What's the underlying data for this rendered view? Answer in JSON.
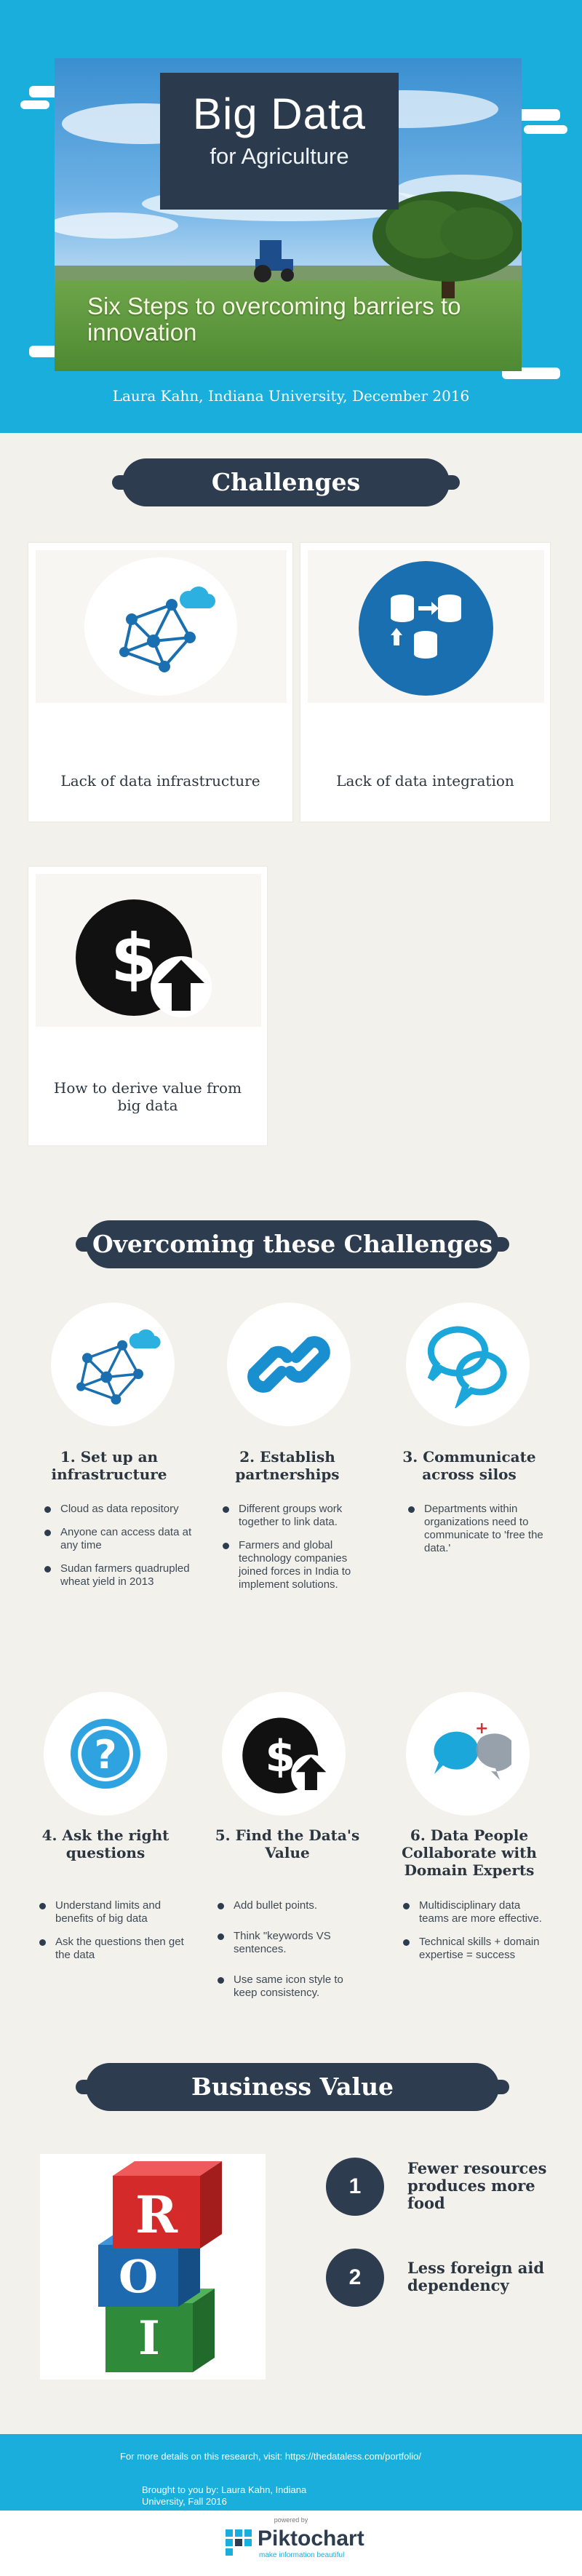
{
  "header": {
    "title": "Big Data",
    "title_sub": "for Agriculture",
    "subtitle": "Six Steps to overcoming barriers to innovation",
    "author": "Laura Kahn, Indiana University, December 2016"
  },
  "sections": {
    "challenges": "Challenges",
    "overcoming": "Overcoming these Challenges",
    "business_value": "Business Value"
  },
  "challenges": [
    {
      "label": "Lack of data infrastructure",
      "icon": "network-icon"
    },
    {
      "label": "Lack of data integration",
      "icon": "database-transfer-icon"
    },
    {
      "label": "How to derive value from big data",
      "icon": "dollar-upload-icon"
    }
  ],
  "steps": [
    {
      "title": "1. Set up an infrastructure",
      "icon": "network-icon",
      "bullets": [
        "Cloud as data repository",
        "Anyone can access data at any time",
        "Sudan farmers quadrupled wheat yield in 2013"
      ]
    },
    {
      "title": "2. Establish partnerships",
      "icon": "chain-link-icon",
      "bullets": [
        "Different groups work together to link data.",
        "Farmers and global technology companies joined forces in India to implement solutions."
      ]
    },
    {
      "title": "3. Communicate across silos",
      "icon": "chat-bubbles-icon",
      "bullets": [
        "Departments within organizations need to communicate to 'free the data.'"
      ]
    },
    {
      "title": "4. Ask the right questions",
      "icon": "question-icon",
      "bullets": [
        "Understand limits and benefits of big data",
        "Ask the questions then get the data"
      ]
    },
    {
      "title": "5. Find the Data's Value",
      "icon": "dollar-upload-icon",
      "bullets": [
        "Add bullet points.",
        "Think \"keywords VS sentences.",
        "Use same icon style to keep consistency."
      ]
    },
    {
      "title": "6. Data People Collaborate with Domain Experts",
      "icon": "people-bubbles-icon",
      "bullets": [
        "Multidisciplinary data teams are more effective.",
        "Technical skills + domain expertise = success"
      ]
    }
  ],
  "roi": {
    "letters": [
      "R",
      "O",
      "I"
    ]
  },
  "business_values": [
    {
      "num": "1",
      "text": "Fewer resources produces more food"
    },
    {
      "num": "2",
      "text": "Less foreign aid dependency"
    }
  ],
  "footer": {
    "details": "For more details on this research, visit: https://thedataless.com/portfolio/",
    "credit": "Brought to you by: Laura Kahn, Indiana University, Fall 2016",
    "powered": "powered by",
    "brand": "Piktochart",
    "tagline": "make information beautiful"
  },
  "colors": {
    "accent": "#1aaedd",
    "navy": "#2d3d4f",
    "background": "#f3f1ec"
  }
}
